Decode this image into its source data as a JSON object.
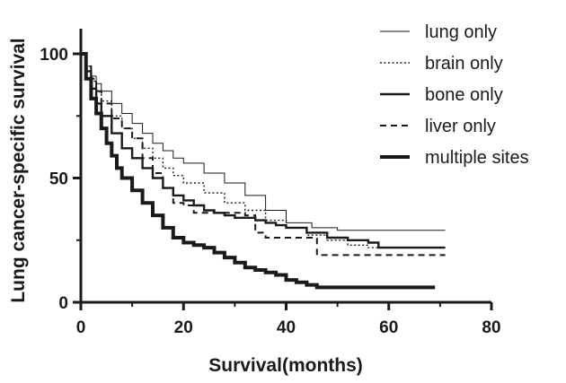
{
  "chart_data": {
    "type": "line",
    "xlabel": "Survival(months)",
    "ylabel": "Lung cancer-specific survival",
    "xlim": [
      0,
      80
    ],
    "ylim": [
      0,
      100
    ],
    "x_ticks": [
      0,
      20,
      40,
      60,
      80
    ],
    "y_ticks": [
      0,
      50,
      100
    ],
    "grid": false,
    "legend_position": "top-right",
    "series": [
      {
        "name": "lung only",
        "style": "thin-solid",
        "points": [
          [
            0,
            100
          ],
          [
            1,
            95
          ],
          [
            2,
            91
          ],
          [
            3,
            88
          ],
          [
            4,
            85
          ],
          [
            6,
            80
          ],
          [
            8,
            76
          ],
          [
            10,
            72
          ],
          [
            12,
            68
          ],
          [
            14,
            64
          ],
          [
            16,
            61
          ],
          [
            18,
            58
          ],
          [
            20,
            56
          ],
          [
            24,
            52
          ],
          [
            28,
            48
          ],
          [
            32,
            43
          ],
          [
            36,
            37
          ],
          [
            40,
            32
          ],
          [
            45,
            30
          ],
          [
            50,
            29
          ],
          [
            55,
            29
          ],
          [
            60,
            29
          ],
          [
            65,
            29
          ],
          [
            71,
            29
          ]
        ]
      },
      {
        "name": "brain only",
        "style": "dotted",
        "points": [
          [
            0,
            100
          ],
          [
            1,
            94
          ],
          [
            2,
            89
          ],
          [
            3,
            85
          ],
          [
            4,
            81
          ],
          [
            6,
            75
          ],
          [
            8,
            70
          ],
          [
            10,
            66
          ],
          [
            12,
            62
          ],
          [
            14,
            58
          ],
          [
            16,
            54
          ],
          [
            18,
            51
          ],
          [
            20,
            48
          ],
          [
            24,
            44
          ],
          [
            28,
            40
          ],
          [
            32,
            37
          ],
          [
            36,
            33
          ],
          [
            40,
            30
          ],
          [
            44,
            27
          ],
          [
            48,
            25
          ],
          [
            52,
            23
          ],
          [
            56,
            22
          ],
          [
            60,
            22
          ],
          [
            65,
            22
          ],
          [
            71,
            22
          ]
        ]
      },
      {
        "name": "bone only",
        "style": "solid",
        "points": [
          [
            0,
            100
          ],
          [
            1,
            93
          ],
          [
            2,
            86
          ],
          [
            3,
            80
          ],
          [
            4,
            75
          ],
          [
            6,
            68
          ],
          [
            8,
            62
          ],
          [
            10,
            58
          ],
          [
            12,
            54
          ],
          [
            14,
            50
          ],
          [
            16,
            46
          ],
          [
            18,
            43
          ],
          [
            20,
            41
          ],
          [
            22,
            39
          ],
          [
            24,
            37
          ],
          [
            26,
            36
          ],
          [
            28,
            35
          ],
          [
            30,
            34
          ],
          [
            32,
            34
          ],
          [
            34,
            33
          ],
          [
            36,
            32
          ],
          [
            38,
            31
          ],
          [
            40,
            30
          ],
          [
            44,
            28
          ],
          [
            48,
            26
          ],
          [
            52,
            25
          ],
          [
            56,
            24
          ],
          [
            58,
            22
          ],
          [
            62,
            22
          ],
          [
            71,
            22
          ]
        ]
      },
      {
        "name": "liver only",
        "style": "dashed",
        "points": [
          [
            0,
            100
          ],
          [
            1,
            95
          ],
          [
            2,
            90
          ],
          [
            3,
            85
          ],
          [
            4,
            80
          ],
          [
            6,
            74
          ],
          [
            8,
            70
          ],
          [
            10,
            66
          ],
          [
            12,
            58
          ],
          [
            14,
            52
          ],
          [
            16,
            46
          ],
          [
            18,
            40
          ],
          [
            20,
            39
          ],
          [
            22,
            36
          ],
          [
            26,
            36
          ],
          [
            30,
            36
          ],
          [
            32,
            35
          ],
          [
            34,
            28
          ],
          [
            36,
            26
          ],
          [
            40,
            26
          ],
          [
            45,
            26
          ],
          [
            46,
            19
          ],
          [
            50,
            19
          ],
          [
            60,
            19
          ],
          [
            71,
            19
          ]
        ]
      },
      {
        "name": "multiple sites",
        "style": "thick-solid",
        "points": [
          [
            0,
            100
          ],
          [
            1,
            90
          ],
          [
            2,
            82
          ],
          [
            3,
            76
          ],
          [
            4,
            70
          ],
          [
            5,
            64
          ],
          [
            6,
            59
          ],
          [
            7,
            54
          ],
          [
            8,
            50
          ],
          [
            10,
            45
          ],
          [
            12,
            40
          ],
          [
            14,
            35
          ],
          [
            16,
            30
          ],
          [
            18,
            26
          ],
          [
            20,
            24
          ],
          [
            22,
            23
          ],
          [
            24,
            22
          ],
          [
            26,
            20
          ],
          [
            28,
            18
          ],
          [
            30,
            16
          ],
          [
            32,
            14
          ],
          [
            34,
            13
          ],
          [
            36,
            12
          ],
          [
            38,
            11
          ],
          [
            40,
            9
          ],
          [
            42,
            8
          ],
          [
            44,
            7
          ],
          [
            46,
            6
          ],
          [
            50,
            6
          ],
          [
            55,
            6
          ],
          [
            60,
            6
          ],
          [
            65,
            6
          ],
          [
            69,
            6
          ]
        ]
      }
    ]
  }
}
